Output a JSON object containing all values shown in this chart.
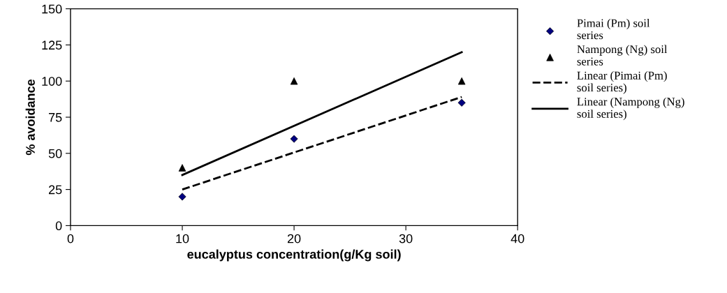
{
  "chart_data": {
    "type": "scatter",
    "xlabel": "eucalyptus concentration(g/Kg soil)",
    "ylabel": "% avoidance",
    "xlim": [
      0,
      40
    ],
    "xticks": [
      0,
      10,
      20,
      30,
      40
    ],
    "ylim": [
      0,
      150
    ],
    "yticks": [
      0,
      25,
      50,
      75,
      100,
      125,
      150
    ],
    "grid": false,
    "legend": "right",
    "series": [
      {
        "name": "Pimai (Pm) soil series",
        "marker": "diamond",
        "color": "#000080",
        "x": [
          10,
          20,
          35
        ],
        "values": [
          20,
          60,
          85
        ]
      },
      {
        "name": "Nampong (Ng) soil series",
        "marker": "triangle",
        "color": "#000000",
        "x": [
          10,
          20,
          35
        ],
        "values": [
          40,
          100,
          100
        ]
      },
      {
        "name": "Linear (Pimai (Pm) soil series)",
        "type": "line",
        "line_style": "dashed",
        "marker": "none",
        "color": "#000000",
        "x": [
          10,
          35
        ],
        "values": [
          25,
          89
        ]
      },
      {
        "name": "Linear (Nampong (Ng) soil series)",
        "type": "line",
        "line_style": "solid",
        "marker": "none",
        "color": "#000000",
        "x": [
          10,
          35
        ],
        "values": [
          35,
          120
        ]
      }
    ]
  }
}
